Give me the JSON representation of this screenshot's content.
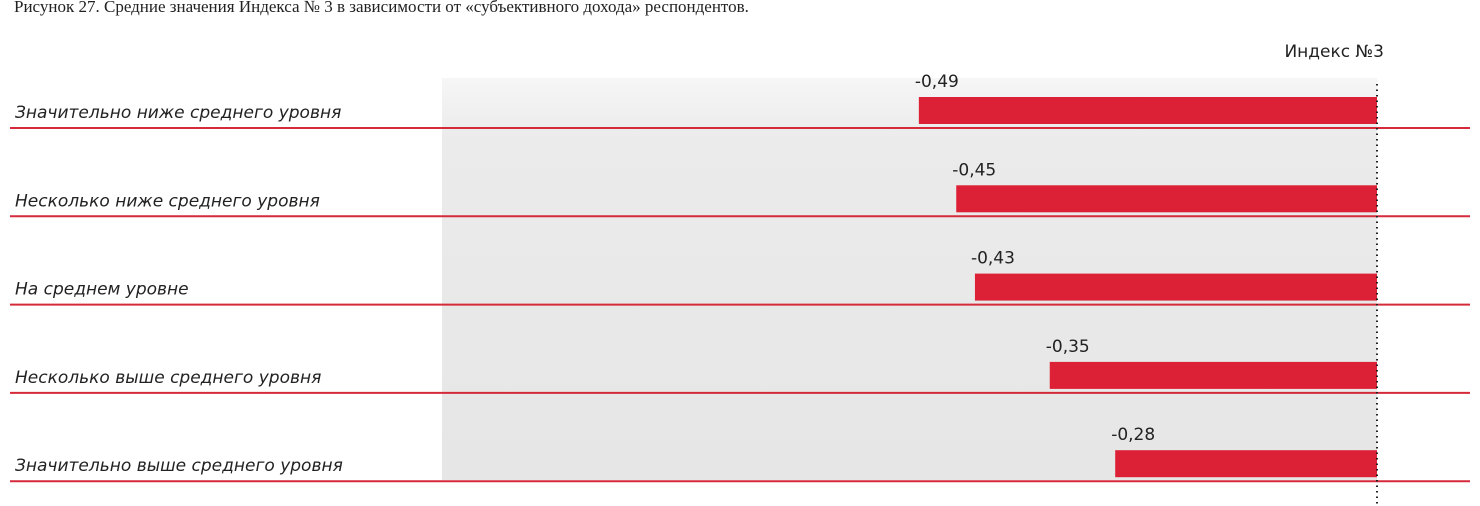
{
  "chart_data": {
    "type": "bar",
    "orientation": "horizontal",
    "title": "Рисунок 27. Средние значения Индекса № 3 в зависимости от «субъективного дохода» респондентов.",
    "categories": [
      "Значительно ниже среднего уровня",
      "Несколько ниже среднего уровня",
      "На среднем уровне",
      "Несколько выше среднего уровня",
      "Значительно выше среднего уровня"
    ],
    "series": [
      {
        "name": "Индекс №3",
        "color": "#dc2035",
        "values": [
          -0.49,
          -0.45,
          -0.43,
          -0.35,
          -0.28
        ],
        "value_labels": [
          "-0,49",
          "-0,45",
          "-0,43",
          "-0,35",
          "-0,28"
        ]
      }
    ],
    "xlim": [
      -1,
      0
    ]
  }
}
